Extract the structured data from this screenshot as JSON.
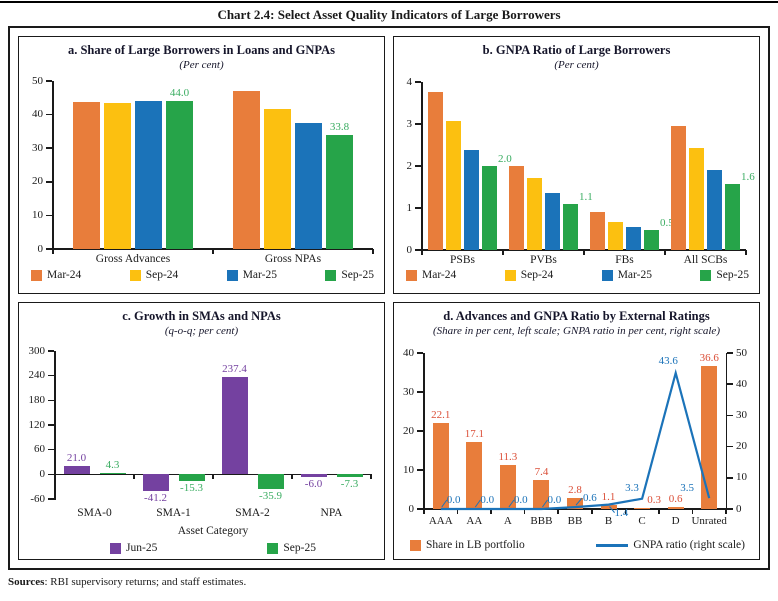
{
  "page": {
    "title": "Chart 2.4: Select Asset Quality Indicators of Large Borrowers",
    "sources_bold": "Sources",
    "sources_text": ": RBI supervisory returns; and staff estimates."
  },
  "colors": {
    "mar24_orange": "#E87D3B",
    "sep24_yellow": "#FCC010",
    "mar25_blue": "#1B73B9",
    "sep25_green": "#26A449",
    "jun25_purple": "#7441A0",
    "green_label": "#3BAD62",
    "bar_label_red": "#DB4F38",
    "line_blue": "#1B73B9",
    "axis_black": "#1a1a1a"
  },
  "chart_data": [
    {
      "id": "a",
      "type": "bar",
      "title": "a. Share of Large Borrowers in Loans and GNPAs",
      "subtitle": "(Per cent)",
      "categories": [
        "Gross Advances",
        "Gross NPAs"
      ],
      "series": [
        {
          "name": "Mar-24",
          "color": "#E87D3B",
          "values": [
            43.7,
            47.1
          ]
        },
        {
          "name": "Sep-24",
          "color": "#FCC010",
          "values": [
            43.4,
            41.6
          ]
        },
        {
          "name": "Mar-25",
          "color": "#1B73B9",
          "values": [
            44.0,
            37.5
          ]
        },
        {
          "name": "Sep-25",
          "color": "#26A449",
          "label_color": "#3BAD62",
          "values": [
            44.0,
            33.8
          ],
          "labels": [
            "44.0",
            "33.8"
          ]
        }
      ],
      "ylim": [
        0,
        50
      ],
      "yticks": [
        0,
        10,
        20,
        30,
        40,
        50
      ],
      "grid": false,
      "legend_position": "bottom"
    },
    {
      "id": "b",
      "type": "bar",
      "title": "b. GNPA Ratio of Large Borrowers",
      "subtitle": "(Per cent)",
      "categories": [
        "PSBs",
        "PVBs",
        "FBs",
        "All SCBs"
      ],
      "series": [
        {
          "name": "Mar-24",
          "color": "#E87D3B",
          "values": [
            3.77,
            1.99,
            0.91,
            2.95
          ]
        },
        {
          "name": "Sep-24",
          "color": "#FCC010",
          "values": [
            3.07,
            1.71,
            0.66,
            2.42
          ]
        },
        {
          "name": "Mar-25",
          "color": "#1B73B9",
          "values": [
            2.39,
            1.35,
            0.55,
            1.9
          ]
        },
        {
          "name": "Sep-25",
          "color": "#26A449",
          "label_color": "#3BAD62",
          "values": [
            2.0,
            1.1,
            0.47,
            1.57
          ],
          "labels": [
            "2.0",
            "1.1",
            "0.5",
            "1.6"
          ]
        }
      ],
      "ylim": [
        0,
        4
      ],
      "yticks": [
        0,
        1,
        2,
        3,
        4
      ],
      "grid": false,
      "legend_position": "bottom",
      "label_pos": "right"
    },
    {
      "id": "c",
      "type": "bar",
      "title": "c. Growth in SMAs and NPAs",
      "subtitle": "(q-o-q; per cent)",
      "xlabel": "Asset Category",
      "categories": [
        "SMA-0",
        "SMA-1",
        "SMA-2",
        "NPA"
      ],
      "series": [
        {
          "name": "Jun-25",
          "color": "#7441A0",
          "values": [
            21.0,
            -41.2,
            237.4,
            -6.0
          ],
          "labels": [
            "21.0",
            "-41.2",
            "237.4",
            "-6.0"
          ]
        },
        {
          "name": "Sep-25",
          "color": "#26A449",
          "label_color": "#3BAD62",
          "values": [
            4.3,
            -15.3,
            -35.9,
            -7.3
          ],
          "labels": [
            "4.3",
            "-15.3",
            "-35.9",
            "-7.3"
          ]
        }
      ],
      "ylim": [
        -60,
        300
      ],
      "yticks": [
        -60,
        0,
        60,
        120,
        180,
        240,
        300
      ],
      "grid": false,
      "legend_position": "bottom"
    },
    {
      "id": "d",
      "type": "bar+line",
      "title": "d. Advances and GNPA Ratio by External Ratings",
      "subtitle": "(Share in per cent, left scale; GNPA ratio in per cent, right scale)",
      "categories": [
        "AAA",
        "AA",
        "A",
        "BBB",
        "BB",
        "B",
        "C",
        "D",
        "Unrated"
      ],
      "bar_series": {
        "name": "Share in LB portfolio",
        "color": "#E87D3B",
        "label_color": "#DB4F38",
        "values": [
          22.1,
          17.1,
          11.3,
          7.4,
          2.8,
          1.1,
          0.3,
          0.6,
          36.6
        ],
        "labels": [
          "22.1",
          "17.1",
          "11.3",
          "7.4",
          "2.8",
          "1.1",
          "0.3",
          "0.6",
          "36.6"
        ]
      },
      "line_series": {
        "name": "GNPA ratio (right scale)",
        "color": "#1B73B9",
        "values": [
          0.0,
          0.0,
          0.0,
          0.0,
          0.6,
          1.4,
          3.3,
          43.6,
          3.5
        ],
        "labels": [
          "0.0",
          "0.0",
          "0.0",
          "0.0",
          "0.6",
          "1.4",
          "3.3",
          "43.6",
          "3.5"
        ]
      },
      "ylim_left": [
        0,
        40
      ],
      "yticks_left": [
        0,
        10,
        20,
        30,
        40
      ],
      "ylim_right": [
        0,
        50
      ],
      "yticks_right": [
        0,
        10,
        20,
        30,
        40,
        50
      ],
      "grid": false,
      "legend_position": "bottom"
    }
  ]
}
